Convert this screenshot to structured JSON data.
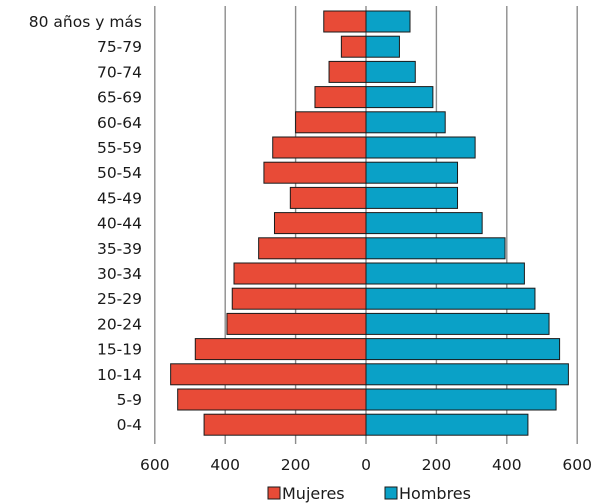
{
  "chart_data": {
    "type": "bar",
    "orientation": "horizontal",
    "layout": "population-pyramid",
    "categories": [
      "0-4",
      "5-9",
      "10-14",
      "15-19",
      "20-24",
      "25-29",
      "30-34",
      "35-39",
      "40-44",
      "45-49",
      "50-54",
      "55-59",
      "60-64",
      "65-69",
      "70-74",
      "75-79",
      "80 años y más"
    ],
    "series": [
      {
        "name": "Mujeres",
        "side": "left",
        "color": "#e84b37",
        "values": [
          460,
          535,
          555,
          485,
          395,
          380,
          375,
          305,
          260,
          215,
          290,
          265,
          200,
          145,
          105,
          70,
          120
        ]
      },
      {
        "name": "Hombres",
        "side": "right",
        "color": "#0aa1c7",
        "values": [
          460,
          540,
          575,
          550,
          520,
          480,
          450,
          395,
          330,
          260,
          260,
          310,
          225,
          190,
          140,
          95,
          125
        ]
      }
    ],
    "x_ticks": [
      "600",
      "400",
      "200",
      "0",
      "200",
      "400",
      "600"
    ],
    "xlim": [
      -600,
      600
    ],
    "grid": true,
    "legend_position": "bottom"
  }
}
